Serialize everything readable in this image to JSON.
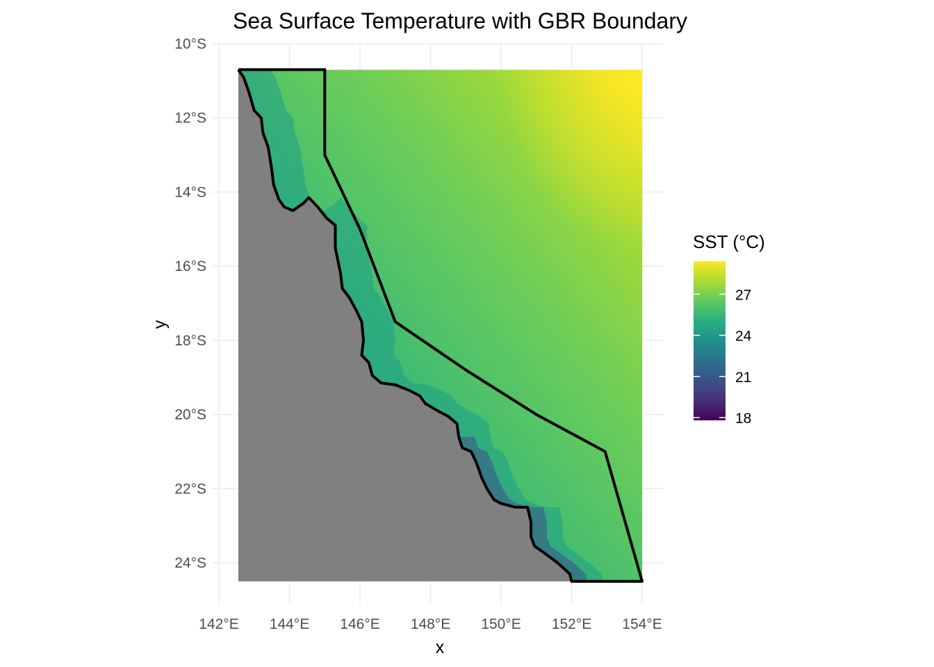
{
  "chart_data": {
    "type": "heatmap",
    "title": "Sea Surface Temperature with GBR Boundary",
    "xlabel": "x",
    "ylabel": "y",
    "xlim": [
      141.8,
      154.6
    ],
    "ylim": [
      -25.1,
      -10.0
    ],
    "x_ticks": [
      142,
      144,
      146,
      148,
      150,
      152,
      154
    ],
    "x_tick_labels": [
      "142°E",
      "144°E",
      "146°E",
      "148°E",
      "150°E",
      "152°E",
      "154°E"
    ],
    "y_ticks": [
      -10,
      -12,
      -14,
      -16,
      -18,
      -20,
      -22,
      -24
    ],
    "y_tick_labels": [
      "10°S",
      "12°S",
      "14°S",
      "16°S",
      "18°S",
      "20°S",
      "22°S",
      "24°S"
    ],
    "grid": true,
    "raster_extent": {
      "lon": [
        142.55,
        154.0
      ],
      "lat": [
        -24.5,
        -10.7
      ]
    },
    "land_color": "#808080",
    "legend": {
      "title": "SST (°C)",
      "placement": "right",
      "range": [
        17.8,
        29.4
      ],
      "ticks": [
        18,
        21,
        24,
        27
      ],
      "tick_labels": [
        "18",
        "21",
        "24",
        "27"
      ],
      "colormap": "viridis"
    },
    "gbr_boundary": [
      [
        142.55,
        -10.7
      ],
      [
        145.0,
        -10.7
      ],
      [
        145.0,
        -13.0
      ],
      [
        146.0,
        -15.0
      ],
      [
        147.0,
        -17.5
      ],
      [
        149.0,
        -18.8
      ],
      [
        151.0,
        -20.0
      ],
      [
        152.95,
        -21.0
      ],
      [
        154.0,
        -24.5
      ],
      [
        152.0,
        -24.5
      ]
    ],
    "coastline": [
      [
        142.55,
        -10.7
      ],
      [
        142.7,
        -10.9
      ],
      [
        142.85,
        -11.3
      ],
      [
        143.0,
        -11.8
      ],
      [
        143.2,
        -12.0
      ],
      [
        143.25,
        -12.4
      ],
      [
        143.4,
        -12.8
      ],
      [
        143.5,
        -13.4
      ],
      [
        143.55,
        -13.8
      ],
      [
        143.7,
        -14.2
      ],
      [
        143.85,
        -14.4
      ],
      [
        144.1,
        -14.5
      ],
      [
        144.4,
        -14.3
      ],
      [
        144.55,
        -14.15
      ],
      [
        144.8,
        -14.4
      ],
      [
        145.05,
        -14.7
      ],
      [
        145.3,
        -14.9
      ],
      [
        145.3,
        -15.5
      ],
      [
        145.45,
        -16.2
      ],
      [
        145.5,
        -16.6
      ],
      [
        145.7,
        -16.85
      ],
      [
        145.9,
        -17.2
      ],
      [
        146.05,
        -17.5
      ],
      [
        146.1,
        -18.0
      ],
      [
        146.05,
        -18.4
      ],
      [
        146.25,
        -18.6
      ],
      [
        146.35,
        -18.95
      ],
      [
        146.6,
        -19.15
      ],
      [
        147.0,
        -19.2
      ],
      [
        147.4,
        -19.35
      ],
      [
        147.7,
        -19.5
      ],
      [
        147.85,
        -19.7
      ],
      [
        148.2,
        -19.9
      ],
      [
        148.5,
        -20.05
      ],
      [
        148.75,
        -20.25
      ],
      [
        148.8,
        -20.6
      ],
      [
        148.9,
        -20.9
      ],
      [
        149.15,
        -21.0
      ],
      [
        149.3,
        -21.3
      ],
      [
        149.45,
        -21.7
      ],
      [
        149.6,
        -22.0
      ],
      [
        149.8,
        -22.3
      ],
      [
        150.0,
        -22.4
      ],
      [
        150.4,
        -22.5
      ],
      [
        150.75,
        -22.5
      ],
      [
        150.85,
        -22.9
      ],
      [
        150.85,
        -23.3
      ],
      [
        150.95,
        -23.55
      ],
      [
        151.25,
        -23.75
      ],
      [
        151.6,
        -24.0
      ],
      [
        151.95,
        -24.3
      ],
      [
        152.0,
        -24.5
      ]
    ]
  }
}
